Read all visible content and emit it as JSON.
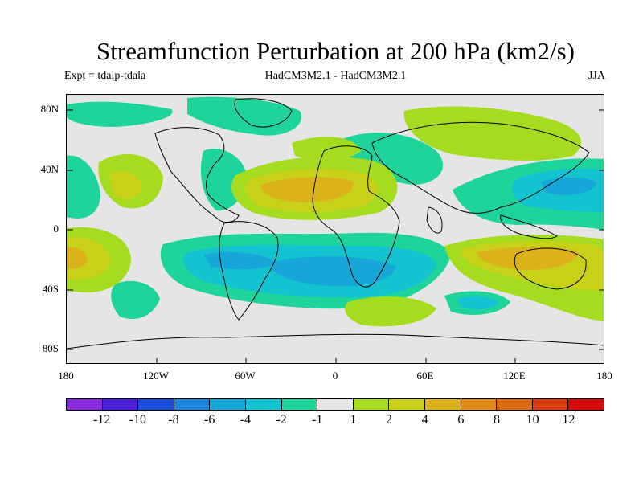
{
  "title": "Streamfunction Perturbation at 200 hPa (km2/s)",
  "experiment": "Expt = tdalp-tdala",
  "model": "HadCM3M2.1 - HadCM3M2.1",
  "season": "JJA",
  "latitude_ticks": [
    "80N",
    "40N",
    "0",
    "40S",
    "80S"
  ],
  "longitude_ticks": [
    "180",
    "120W",
    "60W",
    "0",
    "60E",
    "120E",
    "180"
  ],
  "colorbar": {
    "labels": [
      "-12",
      "-10",
      "-8",
      "-6",
      "-4",
      "-2",
      "-1",
      "1",
      "2",
      "4",
      "6",
      "8",
      "10",
      "12"
    ],
    "colors": [
      "#8a2be2",
      "#4b1fd6",
      "#1c4fd8",
      "#1a86dc",
      "#16a6d8",
      "#13c4d0",
      "#1fd49a",
      "#e5e5e5",
      "#a6dc1f",
      "#c8d018",
      "#dcb21a",
      "#e08c16",
      "#dc6a10",
      "#d83c0c",
      "#d40a0a"
    ]
  },
  "colors": {
    "zero_band": "#e5e5e5",
    "neg_1": "#1fd49a",
    "neg_2": "#13c4d0",
    "neg_4": "#16a6d8",
    "pos_1": "#a6dc1f",
    "pos_2": "#c8d018",
    "pos_4": "#dcb21a",
    "coast": "#000000"
  }
}
